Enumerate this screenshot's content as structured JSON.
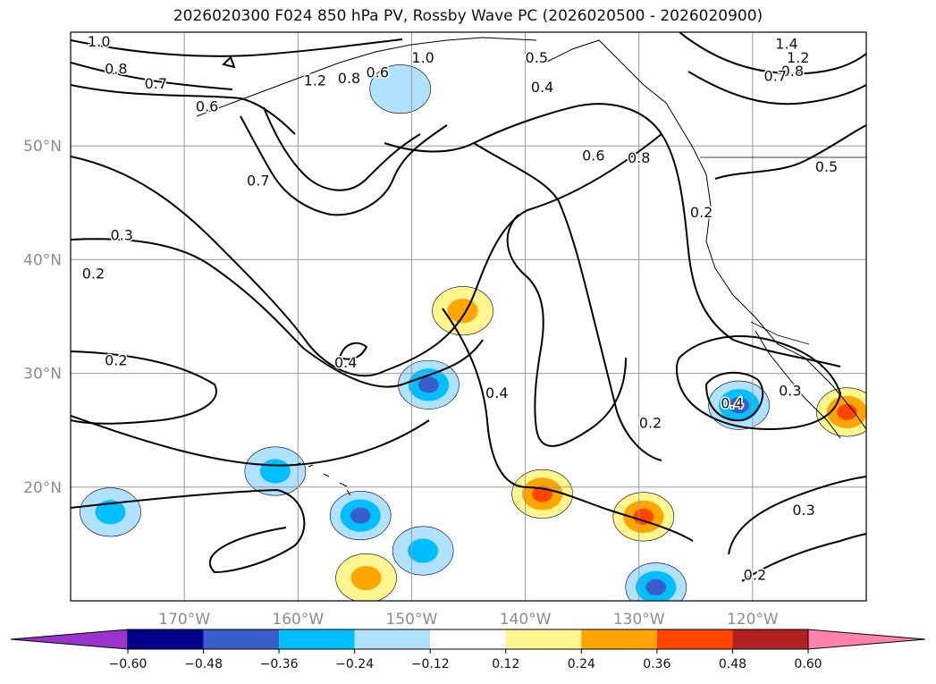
{
  "chart_data": {
    "type": "contour-map",
    "title": "2026020300 F024 850 hPa PV, Rossby Wave PC (2026020500 - 2026020900)",
    "xlabel": "",
    "ylabel": "",
    "xlim": [
      -180,
      -110
    ],
    "ylim": [
      10,
      60
    ],
    "grid": true,
    "x_ticks": [
      {
        "value": -170,
        "label": "170°W"
      },
      {
        "value": -160,
        "label": "160°W"
      },
      {
        "value": -150,
        "label": "150°W"
      },
      {
        "value": -140,
        "label": "140°W"
      },
      {
        "value": -130,
        "label": "130°W"
      },
      {
        "value": -120,
        "label": "120°W"
      }
    ],
    "y_ticks": [
      {
        "value": 20,
        "label": "20°N"
      },
      {
        "value": 30,
        "label": "30°N"
      },
      {
        "value": 40,
        "label": "40°N"
      },
      {
        "value": 50,
        "label": "50°N"
      }
    ],
    "colorbar": {
      "orientation": "horizontal",
      "extend": "both",
      "levels": [
        -0.6,
        -0.48,
        -0.36,
        -0.24,
        -0.12,
        0.12,
        0.24,
        0.36,
        0.48,
        0.6
      ],
      "tick_labels": [
        "−0.60",
        "−0.48",
        "−0.36",
        "−0.24",
        "−0.12",
        "0.12",
        "0.24",
        "0.36",
        "0.48",
        "0.60"
      ],
      "colors": [
        "#9a32cd",
        "#00008b",
        "#3a5fcd",
        "#00bfff",
        "#b0e2ff",
        "#ffffff",
        "#fff68f",
        "#ffa500",
        "#ff4500",
        "#b22222",
        "#ff82ab"
      ]
    },
    "contour_labels": [
      {
        "lon": -177.5,
        "lat": 59.2,
        "label": "1.0"
      },
      {
        "lon": -176.0,
        "lat": 56.8,
        "label": "0.8"
      },
      {
        "lon": -172.5,
        "lat": 55.5,
        "label": "0.7"
      },
      {
        "lon": -168.0,
        "lat": 53.5,
        "label": "0.6"
      },
      {
        "lon": -158.5,
        "lat": 55.8,
        "label": "1.2"
      },
      {
        "lon": -155.5,
        "lat": 56.0,
        "label": "0.8"
      },
      {
        "lon": -153.0,
        "lat": 56.5,
        "label": "0.6"
      },
      {
        "lon": -149.0,
        "lat": 57.8,
        "label": "1.0"
      },
      {
        "lon": -139.0,
        "lat": 57.8,
        "label": "0.5"
      },
      {
        "lon": -138.5,
        "lat": 55.2,
        "label": "0.4"
      },
      {
        "lon": -134.0,
        "lat": 49.2,
        "label": "0.6"
      },
      {
        "lon": -130.0,
        "lat": 49.0,
        "label": "0.8"
      },
      {
        "lon": -117.0,
        "lat": 59.0,
        "label": "1.4"
      },
      {
        "lon": -116.0,
        "lat": 57.8,
        "label": "1.2"
      },
      {
        "lon": -116.5,
        "lat": 56.6,
        "label": "0.8"
      },
      {
        "lon": -118.0,
        "lat": 56.2,
        "label": "0.7"
      },
      {
        "lon": -113.5,
        "lat": 48.2,
        "label": "0.5"
      },
      {
        "lon": -124.5,
        "lat": 44.2,
        "label": "0.2"
      },
      {
        "lon": -163.5,
        "lat": 47.0,
        "label": "0.7"
      },
      {
        "lon": -175.5,
        "lat": 42.2,
        "label": "0.3"
      },
      {
        "lon": -178.0,
        "lat": 38.8,
        "label": "0.2"
      },
      {
        "lon": -176.0,
        "lat": 31.2,
        "label": "0.2"
      },
      {
        "lon": -155.8,
        "lat": 31.0,
        "label": "0.4"
      },
      {
        "lon": -142.5,
        "lat": 28.3,
        "label": "0.4"
      },
      {
        "lon": -129.0,
        "lat": 25.7,
        "label": "0.2"
      },
      {
        "lon": -121.8,
        "lat": 27.4,
        "label": "0.4"
      },
      {
        "lon": -116.7,
        "lat": 28.5,
        "label": "0.3"
      },
      {
        "lon": -115.5,
        "lat": 18.0,
        "label": "0.3"
      },
      {
        "lon": -119.8,
        "lat": 12.3,
        "label": "0.2"
      }
    ],
    "filled_regions": [
      {
        "level": -0.36,
        "lon": -176.5,
        "lat": 17.8
      },
      {
        "level": -0.48,
        "lon": -148.5,
        "lat": 29.0
      },
      {
        "level": -0.48,
        "lon": -154.5,
        "lat": 17.5
      },
      {
        "level": -0.36,
        "lon": -162.0,
        "lat": 21.4
      },
      {
        "level": -0.36,
        "lon": -149.0,
        "lat": 14.4
      },
      {
        "level": -0.24,
        "lon": -151.0,
        "lat": 55.0
      },
      {
        "level": -0.48,
        "lon": -121.2,
        "lat": 27.2
      },
      {
        "level": -0.48,
        "lon": -128.5,
        "lat": 11.2
      },
      {
        "level": 0.36,
        "lon": -138.5,
        "lat": 19.4
      },
      {
        "level": 0.36,
        "lon": -129.6,
        "lat": 17.4
      },
      {
        "level": 0.24,
        "lon": -154.0,
        "lat": 12.0
      },
      {
        "level": 0.24,
        "lon": -145.5,
        "lat": 35.5
      },
      {
        "level": 0.36,
        "lon": -111.7,
        "lat": 26.6
      }
    ]
  }
}
